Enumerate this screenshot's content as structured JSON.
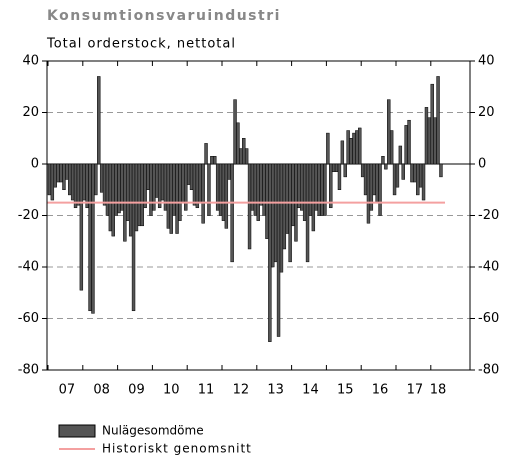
{
  "chart_data": {
    "type": "bar",
    "title": "Konsumtionsvaruindustri",
    "subtitle": "Total orderstock, nettotal",
    "categories": [
      null,
      null,
      null,
      null,
      null,
      null,
      "07",
      null,
      null,
      null,
      null,
      null,
      null,
      null,
      null,
      null,
      null,
      null,
      "08",
      null,
      null,
      null,
      null,
      null,
      null,
      null,
      null,
      null,
      null,
      null,
      "09",
      null,
      null,
      null,
      null,
      null,
      null,
      null,
      null,
      null,
      null,
      null,
      "10",
      null,
      null,
      null,
      null,
      null,
      null,
      null,
      null,
      null,
      null,
      null,
      "11",
      null,
      null,
      null,
      null,
      null,
      null,
      null,
      null,
      null,
      null,
      null,
      "12",
      null,
      null,
      null,
      null,
      null,
      null,
      null,
      null,
      null,
      null,
      null,
      "13",
      null,
      null,
      null,
      null,
      null,
      null,
      null,
      null,
      null,
      null,
      null,
      "14",
      null,
      null,
      null,
      null,
      null,
      null,
      null,
      null,
      null,
      null,
      null,
      "15",
      null,
      null,
      null,
      null,
      null,
      null,
      null,
      null,
      null,
      null,
      null,
      "16",
      null,
      null,
      null,
      null,
      null,
      null,
      null,
      null,
      null,
      null,
      null,
      "17",
      null,
      null,
      null,
      null,
      null,
      null,
      null,
      "18",
      null
    ],
    "series": [
      {
        "name": "Nulägesomdöme",
        "color": "#555555",
        "values": [
          -12,
          -14,
          -9,
          -7,
          -7,
          -10,
          -6,
          -12,
          -14,
          -17,
          -16,
          -49,
          -14,
          -17,
          -57,
          -58,
          -12,
          34,
          -11,
          -16,
          -20,
          -26,
          -28,
          -20,
          -19,
          -18,
          -30,
          -22,
          -28,
          -57,
          -26,
          -24,
          -24,
          -17,
          -10,
          -20,
          -18,
          -13,
          -17,
          -14,
          -18,
          -25,
          -27,
          -20,
          -27,
          -22,
          -15,
          -18,
          -8,
          -10,
          -16,
          -17,
          -15,
          -23,
          8,
          -20,
          3,
          3,
          -18,
          -20,
          -22,
          -25,
          -6,
          -38,
          25,
          16,
          6,
          10,
          6,
          -33,
          -18,
          -20,
          -22,
          -16,
          -20,
          -29,
          -69,
          -40,
          -38,
          -67,
          -42,
          -33,
          -27,
          -38,
          -24,
          -30,
          -17,
          -18,
          -22,
          -38,
          -20,
          -26,
          -18,
          -20,
          -20,
          -20,
          12,
          -17,
          -3,
          -3,
          -10,
          9,
          -5,
          13,
          10,
          12,
          13,
          14,
          -5,
          -12,
          -23,
          -18,
          -12,
          -15,
          -20,
          3,
          -2,
          25,
          13,
          -12,
          -9,
          7,
          -6,
          15,
          17,
          -7,
          -7,
          -12,
          -9,
          -14,
          22,
          18,
          31,
          18,
          34,
          -5
        ]
      }
    ],
    "average": {
      "name": "Historiskt genomsnitt",
      "color": "#f4a0a0",
      "value": -15
    },
    "ylim": [
      -80,
      40
    ],
    "yticks": [
      -80,
      -60,
      -40,
      -20,
      0,
      20,
      40
    ],
    "grid": true
  }
}
